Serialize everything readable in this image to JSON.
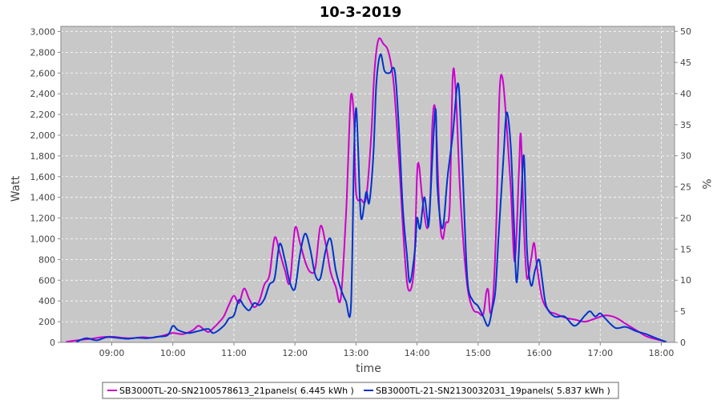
{
  "chart_data": {
    "type": "line",
    "title": "10-3-2019",
    "xlabel": "time",
    "ylabel": "Watt",
    "y2label": "%",
    "x_ticks": [
      "09:00",
      "10:00",
      "11:00",
      "12:00",
      "13:00",
      "14:00",
      "15:00",
      "16:00",
      "17:00",
      "18:00"
    ],
    "xlim": [
      "08:10",
      "18:13"
    ],
    "ylim": [
      0,
      3050
    ],
    "y_ticks": [
      "0",
      "200",
      "400",
      "600",
      "800",
      "1,000",
      "1,200",
      "1,400",
      "1,600",
      "1,800",
      "2,000",
      "2,200",
      "2,400",
      "2,600",
      "2,800",
      "3,000"
    ],
    "y2lim": [
      0,
      50.8
    ],
    "y2_ticks": [
      "0",
      "5",
      "10",
      "15",
      "20",
      "25",
      "30",
      "35",
      "40",
      "45",
      "50"
    ],
    "grid": true,
    "plot_background": "#c8c8c8",
    "legend_position": "bottom",
    "series": [
      {
        "name": "SB3000TL-20-SN2100578613_21panels( 6.445 kWh )",
        "color": "#cc00cc",
        "points": [
          [
            "08:15",
            5
          ],
          [
            "08:30",
            25
          ],
          [
            "08:40",
            35
          ],
          [
            "08:50",
            50
          ],
          [
            "09:00",
            55
          ],
          [
            "09:10",
            45
          ],
          [
            "09:20",
            40
          ],
          [
            "09:30",
            50
          ],
          [
            "09:40",
            45
          ],
          [
            "09:50",
            65
          ],
          [
            "10:00",
            90
          ],
          [
            "10:10",
            80
          ],
          [
            "10:20",
            120
          ],
          [
            "10:25",
            160
          ],
          [
            "10:30",
            130
          ],
          [
            "10:35",
            100
          ],
          [
            "10:40",
            140
          ],
          [
            "10:45",
            190
          ],
          [
            "10:50",
            250
          ],
          [
            "10:55",
            360
          ],
          [
            "11:00",
            450
          ],
          [
            "11:05",
            380
          ],
          [
            "11:10",
            520
          ],
          [
            "11:15",
            420
          ],
          [
            "11:20",
            340
          ],
          [
            "11:25",
            400
          ],
          [
            "11:30",
            560
          ],
          [
            "11:35",
            650
          ],
          [
            "11:40",
            1010
          ],
          [
            "11:45",
            870
          ],
          [
            "11:50",
            700
          ],
          [
            "11:55",
            580
          ],
          [
            "12:00",
            1100
          ],
          [
            "12:05",
            960
          ],
          [
            "12:10",
            780
          ],
          [
            "12:15",
            680
          ],
          [
            "12:20",
            720
          ],
          [
            "12:25",
            1120
          ],
          [
            "12:30",
            960
          ],
          [
            "12:35",
            680
          ],
          [
            "12:40",
            540
          ],
          [
            "12:45",
            420
          ],
          [
            "12:50",
            1200
          ],
          [
            "12:52",
            1680
          ],
          [
            "12:55",
            2380
          ],
          [
            "12:58",
            2150
          ],
          [
            "13:00",
            1450
          ],
          [
            "13:05",
            1380
          ],
          [
            "13:10",
            1400
          ],
          [
            "13:15",
            2000
          ],
          [
            "13:18",
            2600
          ],
          [
            "13:22",
            2920
          ],
          [
            "13:27",
            2880
          ],
          [
            "13:32",
            2800
          ],
          [
            "13:37",
            2500
          ],
          [
            "13:42",
            1800
          ],
          [
            "13:48",
            820
          ],
          [
            "13:52",
            500
          ],
          [
            "13:57",
            720
          ],
          [
            "14:00",
            1620
          ],
          [
            "14:02",
            1700
          ],
          [
            "14:05",
            1400
          ],
          [
            "14:10",
            1100
          ],
          [
            "14:13",
            1400
          ],
          [
            "14:15",
            2100
          ],
          [
            "14:18",
            2230
          ],
          [
            "14:22",
            1250
          ],
          [
            "14:25",
            1000
          ],
          [
            "14:28",
            1150
          ],
          [
            "14:32",
            1300
          ],
          [
            "14:35",
            2560
          ],
          [
            "14:38",
            2420
          ],
          [
            "14:42",
            1500
          ],
          [
            "14:46",
            900
          ],
          [
            "14:50",
            500
          ],
          [
            "14:55",
            320
          ],
          [
            "15:00",
            290
          ],
          [
            "15:05",
            270
          ],
          [
            "15:08",
            480
          ],
          [
            "15:10",
            500
          ],
          [
            "15:12",
            280
          ],
          [
            "15:15",
            480
          ],
          [
            "15:18",
            1200
          ],
          [
            "15:21",
            2400
          ],
          [
            "15:24",
            2550
          ],
          [
            "15:28",
            2100
          ],
          [
            "15:32",
            1500
          ],
          [
            "15:36",
            780
          ],
          [
            "15:40",
            1620
          ],
          [
            "15:42",
            2000
          ],
          [
            "15:45",
            1100
          ],
          [
            "15:48",
            620
          ],
          [
            "15:52",
            800
          ],
          [
            "15:55",
            960
          ],
          [
            "15:58",
            720
          ],
          [
            "16:03",
            420
          ],
          [
            "16:10",
            300
          ],
          [
            "16:15",
            280
          ],
          [
            "16:25",
            240
          ],
          [
            "16:35",
            220
          ],
          [
            "16:45",
            200
          ],
          [
            "16:55",
            230
          ],
          [
            "17:05",
            260
          ],
          [
            "17:15",
            240
          ],
          [
            "17:25",
            180
          ],
          [
            "17:35",
            120
          ],
          [
            "17:45",
            60
          ],
          [
            "17:55",
            30
          ],
          [
            "18:05",
            5
          ]
        ]
      },
      {
        "name": "SB3000TL-21-SN2130032031_19panels( 5.837 kWh )",
        "color": "#0033cc",
        "points": [
          [
            "08:25",
            5
          ],
          [
            "08:35",
            40
          ],
          [
            "08:45",
            20
          ],
          [
            "08:55",
            50
          ],
          [
            "09:05",
            45
          ],
          [
            "09:15",
            35
          ],
          [
            "09:25",
            45
          ],
          [
            "09:35",
            40
          ],
          [
            "09:45",
            55
          ],
          [
            "09:55",
            70
          ],
          [
            "10:00",
            160
          ],
          [
            "10:05",
            120
          ],
          [
            "10:15",
            90
          ],
          [
            "10:25",
            110
          ],
          [
            "10:35",
            130
          ],
          [
            "10:40",
            90
          ],
          [
            "10:50",
            160
          ],
          [
            "10:55",
            230
          ],
          [
            "11:00",
            260
          ],
          [
            "11:05",
            410
          ],
          [
            "11:10",
            350
          ],
          [
            "11:15",
            310
          ],
          [
            "11:20",
            380
          ],
          [
            "11:25",
            360
          ],
          [
            "11:30",
            420
          ],
          [
            "11:35",
            560
          ],
          [
            "11:40",
            620
          ],
          [
            "11:45",
            950
          ],
          [
            "11:50",
            800
          ],
          [
            "11:55",
            580
          ],
          [
            "12:00",
            520
          ],
          [
            "12:05",
            850
          ],
          [
            "12:10",
            1050
          ],
          [
            "12:15",
            900
          ],
          [
            "12:20",
            650
          ],
          [
            "12:25",
            620
          ],
          [
            "12:30",
            880
          ],
          [
            "12:35",
            1000
          ],
          [
            "12:40",
            700
          ],
          [
            "12:45",
            520
          ],
          [
            "12:50",
            400
          ],
          [
            "12:55",
            340
          ],
          [
            "12:58",
            1800
          ],
          [
            "13:00",
            2260
          ],
          [
            "13:02",
            1900
          ],
          [
            "13:05",
            1200
          ],
          [
            "13:10",
            1450
          ],
          [
            "13:13",
            1350
          ],
          [
            "13:17",
            1800
          ],
          [
            "13:20",
            2500
          ],
          [
            "13:24",
            2780
          ],
          [
            "13:28",
            2620
          ],
          [
            "13:33",
            2600
          ],
          [
            "13:38",
            2620
          ],
          [
            "13:42",
            2100
          ],
          [
            "13:46",
            1300
          ],
          [
            "13:50",
            850
          ],
          [
            "13:53",
            580
          ],
          [
            "13:58",
            900
          ],
          [
            "14:00",
            1200
          ],
          [
            "14:03",
            1100
          ],
          [
            "14:07",
            1400
          ],
          [
            "14:10",
            1200
          ],
          [
            "14:12",
            1200
          ],
          [
            "14:18",
            2250
          ],
          [
            "14:20",
            1500
          ],
          [
            "14:25",
            1100
          ],
          [
            "14:30",
            1600
          ],
          [
            "14:35",
            2000
          ],
          [
            "14:40",
            2500
          ],
          [
            "14:43",
            2100
          ],
          [
            "14:47",
            1100
          ],
          [
            "14:50",
            550
          ],
          [
            "14:55",
            400
          ],
          [
            "15:00",
            350
          ],
          [
            "15:05",
            250
          ],
          [
            "15:10",
            160
          ],
          [
            "15:14",
            330
          ],
          [
            "15:17",
            500
          ],
          [
            "15:20",
            1000
          ],
          [
            "15:25",
            1800
          ],
          [
            "15:28",
            2220
          ],
          [
            "15:32",
            1900
          ],
          [
            "15:35",
            1200
          ],
          [
            "15:38",
            580
          ],
          [
            "15:42",
            1300
          ],
          [
            "15:45",
            1800
          ],
          [
            "15:48",
            900
          ],
          [
            "15:52",
            550
          ],
          [
            "15:56",
            700
          ],
          [
            "16:00",
            800
          ],
          [
            "16:03",
            600
          ],
          [
            "16:07",
            350
          ],
          [
            "16:15",
            250
          ],
          [
            "16:25",
            250
          ],
          [
            "16:35",
            160
          ],
          [
            "16:45",
            260
          ],
          [
            "16:50",
            300
          ],
          [
            "16:55",
            250
          ],
          [
            "17:00",
            280
          ],
          [
            "17:05",
            230
          ],
          [
            "17:15",
            140
          ],
          [
            "17:25",
            150
          ],
          [
            "17:35",
            110
          ],
          [
            "17:45",
            80
          ],
          [
            "17:55",
            40
          ],
          [
            "18:05",
            5
          ]
        ]
      }
    ]
  }
}
